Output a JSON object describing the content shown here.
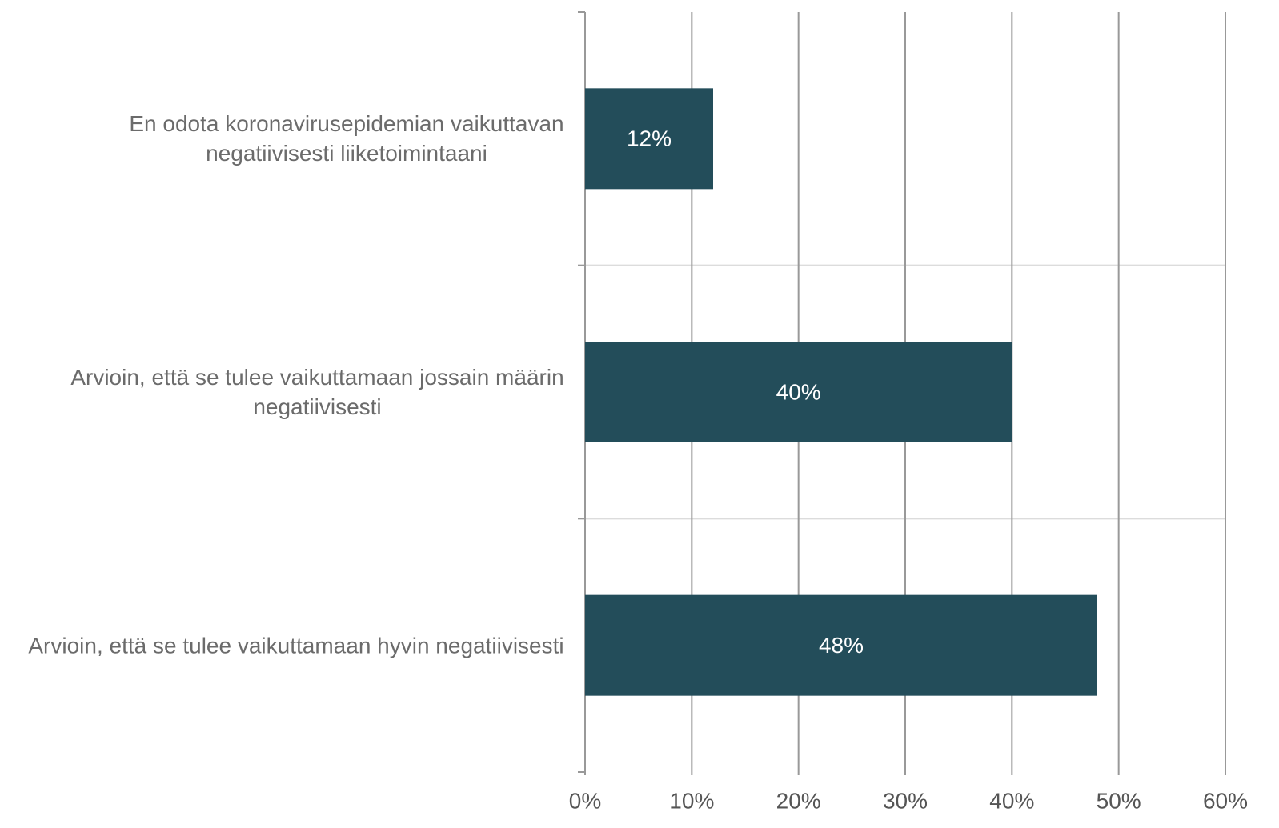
{
  "chart_data": {
    "type": "hbar",
    "categories": [
      "En odota koronavirusepidemian vaikuttavan negatiivisesti liiketoimintaani",
      "Arvioin, että se tulee vaikuttamaan jossain määrin negatiivisesti",
      "Arvioin, että se tulee vaikuttamaan hyvin negatiivisesti"
    ],
    "values": [
      12,
      40,
      48
    ],
    "value_labels": [
      "12%",
      "40%",
      "48%"
    ],
    "color": "#234d5a",
    "xlim": [
      0,
      60
    ],
    "xticks": [
      {
        "value": 0,
        "label": "0%"
      },
      {
        "value": 10,
        "label": "10%"
      },
      {
        "value": 20,
        "label": "20%"
      },
      {
        "value": 30,
        "label": "30%"
      },
      {
        "value": 40,
        "label": "40%"
      },
      {
        "value": 50,
        "label": "50%"
      },
      {
        "value": 60,
        "label": "60%"
      }
    ],
    "grid": true
  }
}
